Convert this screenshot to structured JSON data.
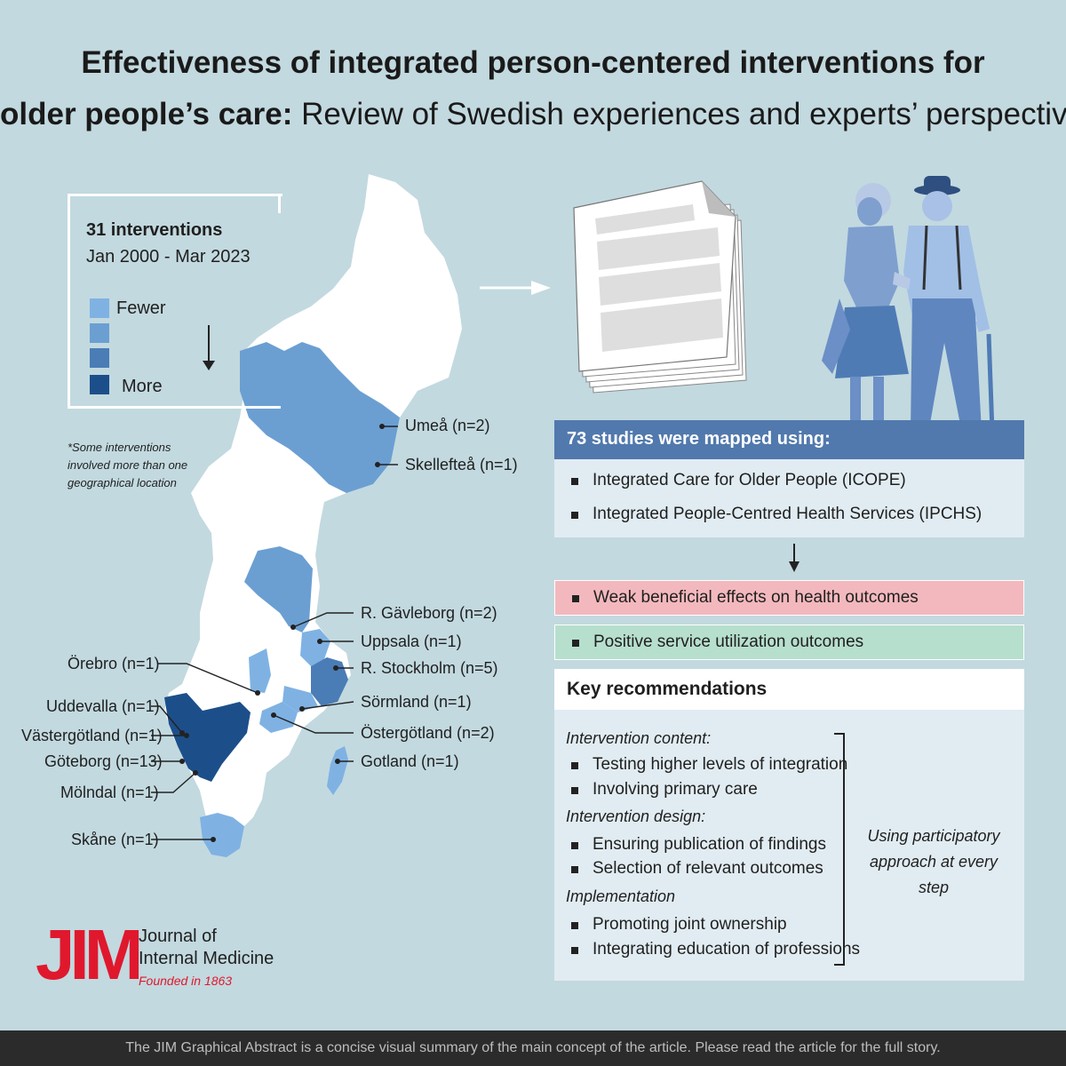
{
  "title": {
    "line1_bold": "Effectiveness of integrated person-centered interventions for",
    "line2_bold": "older people’s care:",
    "line2_rest": " Review of Swedish experiences and experts’ perspective"
  },
  "legend": {
    "title": "31 interventions",
    "period": "Jan 2000 - Mar 2023",
    "fewer": "Fewer",
    "more": "More",
    "scale_colors": [
      "#7fb2e3",
      "#6b9fd2",
      "#4a7db6",
      "#1c4f8a"
    ]
  },
  "footnote": "*Some interventions involved more than one geographical location",
  "map_labels": {
    "umea": "Umeå (n=2)",
    "skelleftea": "Skellefteå (n=1)",
    "gavleborg": "R. Gävleborg (n=2)",
    "uppsala": "Uppsala (n=1)",
    "stockholm": "R. Stockholm (n=5)",
    "sormland": "Sörmland (n=1)",
    "ostergotland": "Östergötland (n=2)",
    "gotland": "Gotland (n=1)",
    "orebro": "Örebro (n=1)",
    "uddevalla": "Uddevalla (n=1)",
    "vastergotland": "Västergötland (n=1)",
    "goteborg": "Göteborg (n=13)",
    "molndal": "Mölndal (n=1)",
    "skane": "Skåne (n=1)"
  },
  "studies": {
    "header": "73 studies were mapped using:",
    "items": [
      "Integrated Care for Older People (ICOPE)",
      "Integrated People-Centred Health Services (IPCHS)"
    ]
  },
  "outcomes": {
    "weak": "Weak beneficial effects on health outcomes",
    "positive": "Positive service utilization outcomes"
  },
  "key_recommendations": {
    "header": "Key recommendations",
    "groups": [
      {
        "title": "Intervention content:",
        "items": [
          "Testing higher levels of integration",
          "Involving primary care"
        ]
      },
      {
        "title": "Intervention design:",
        "items": [
          "Ensuring publication of findings",
          "Selection of relevant outcomes"
        ]
      },
      {
        "title": "Implementation",
        "items": [
          "Promoting joint ownership",
          "Integrating education of professions"
        ]
      }
    ],
    "side_note_line1": "Using participatory",
    "side_note_line2": "approach at every step"
  },
  "logo": {
    "mark": "JIM",
    "line1": "Journal of",
    "line2": "Internal Medicine",
    "founded": "Founded in 1863"
  },
  "footer": "The JIM Graphical Abstract is a concise visual summary of the main concept of the article. Please read the article for the full story.",
  "colors": {
    "background": "#c2d9df",
    "studies_header": "#5179ad",
    "panel": "#e1ecf2",
    "weak": "#f3b8bd",
    "positive": "#b7dfce",
    "jim_red": "#e0182d"
  }
}
